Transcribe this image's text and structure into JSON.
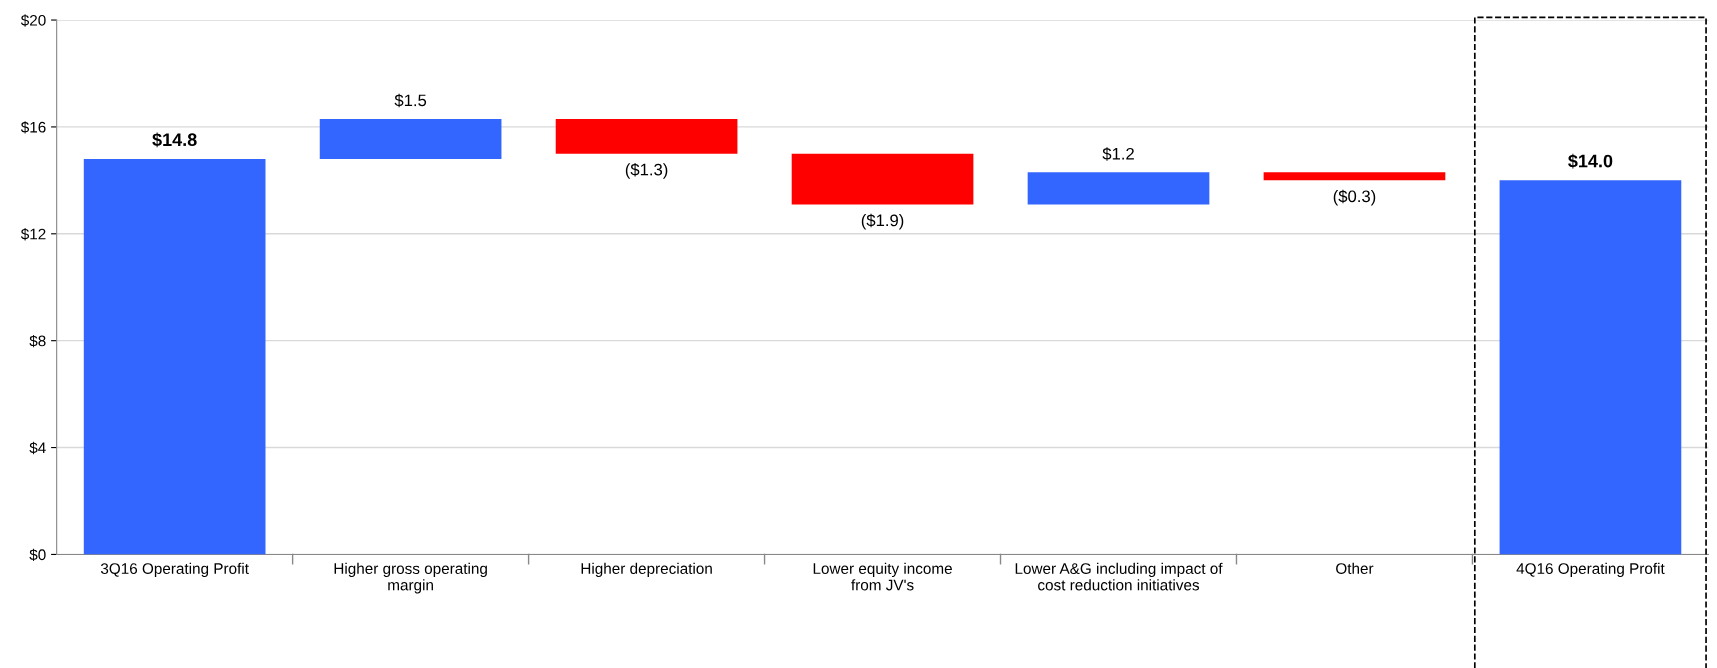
{
  "chart_data": {
    "type": "bar",
    "categories": [
      "3Q16 Operating Profit",
      "Higher gross operating\nmargin",
      "Higher depreciation",
      "Lower equity income\nfrom JV's",
      "Lower A&G including impact of\ncost reduction initiatives",
      "Other",
      "4Q16 Operating Profit"
    ],
    "values": [
      14.8,
      1.5,
      -1.3,
      -1.9,
      1.2,
      -0.3,
      14.0
    ],
    "base": [
      0,
      14.8,
      16.3,
      15.0,
      13.1,
      14.3,
      0
    ],
    "colors": [
      "#3366ff",
      "#3366ff",
      "#ff0000",
      "#ff0000",
      "#3366ff",
      "#ff0000",
      "#3366ff"
    ],
    "value_labels": [
      "$14.8",
      "$1.5",
      "($1.3)",
      "($1.9)",
      "$1.2",
      "($0.3)",
      "$14.0"
    ],
    "ylim": [
      0,
      20
    ],
    "yticks": [
      {
        "value": 0,
        "label": "$0"
      },
      {
        "value": 4,
        "label": "$4"
      },
      {
        "value": 8,
        "label": "$8"
      },
      {
        "value": 12,
        "label": "$12"
      },
      {
        "value": 16,
        "label": "$16"
      },
      {
        "value": 20,
        "label": "$20"
      }
    ],
    "grid": "y"
  }
}
